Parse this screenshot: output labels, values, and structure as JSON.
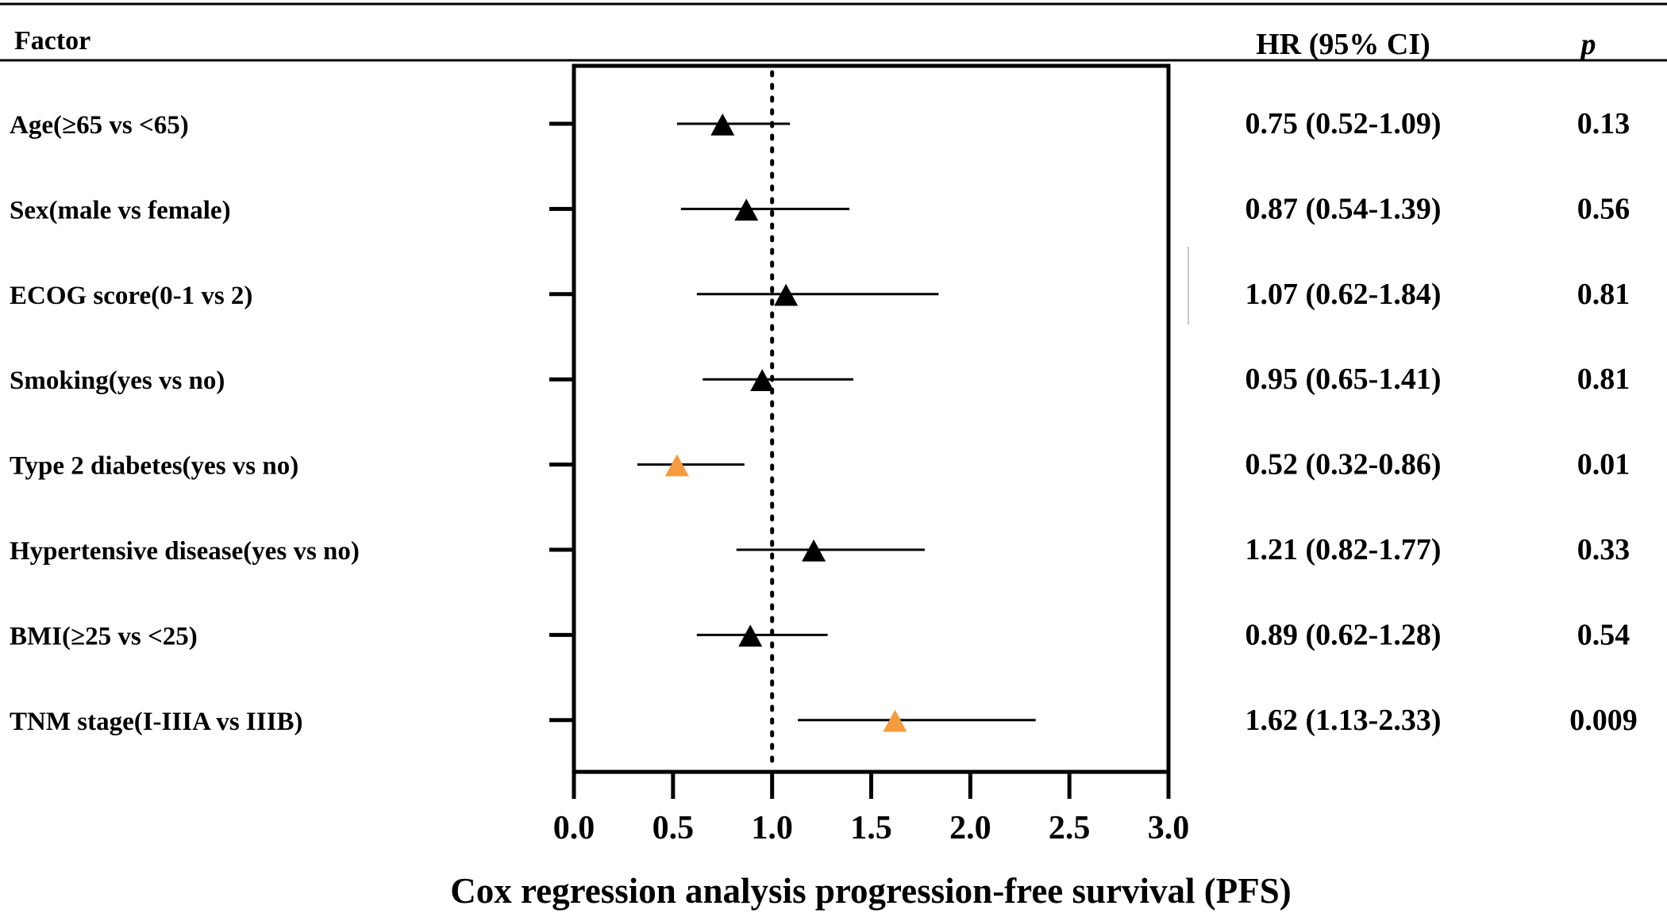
{
  "chart_data": {
    "type": "forest",
    "title": "",
    "xlabel": "Cox regression analysis progression-free survival (PFS)",
    "ylabel": "",
    "xlim": [
      0,
      3
    ],
    "xticks": [
      "0.0",
      "0.5",
      "1.0",
      "1.5",
      "2.0",
      "2.5",
      "3.0"
    ],
    "reference_line": 1.0,
    "headers": {
      "factor": "Factor",
      "hr": "HR (95% CI)",
      "p": "p"
    },
    "colors": {
      "normal": "#000000",
      "significant": "#f59b3e"
    },
    "rows": [
      {
        "factor": "Age(≥65 vs <65)",
        "hr": 0.75,
        "lo": 0.52,
        "hi": 1.09,
        "hr_text": "0.75 (0.52-1.09)",
        "p": "0.13",
        "significant": false
      },
      {
        "factor": "Sex(male vs female)",
        "hr": 0.87,
        "lo": 0.54,
        "hi": 1.39,
        "hr_text": "0.87 (0.54-1.39)",
        "p": "0.56",
        "significant": false
      },
      {
        "factor": "ECOG score(0-1 vs 2)",
        "hr": 1.07,
        "lo": 0.62,
        "hi": 1.84,
        "hr_text": "1.07 (0.62-1.84)",
        "p": "0.81",
        "significant": false
      },
      {
        "factor": "Smoking(yes vs no)",
        "hr": 0.95,
        "lo": 0.65,
        "hi": 1.41,
        "hr_text": "0.95 (0.65-1.41)",
        "p": "0.81",
        "significant": false
      },
      {
        "factor": "Type 2 diabetes(yes vs no)",
        "hr": 0.52,
        "lo": 0.32,
        "hi": 0.86,
        "hr_text": "0.52 (0.32-0.86)",
        "p": "0.01",
        "significant": true
      },
      {
        "factor": "Hypertensive disease(yes vs no)",
        "hr": 1.21,
        "lo": 0.82,
        "hi": 1.77,
        "hr_text": "1.21 (0.82-1.77)",
        "p": "0.33",
        "significant": false
      },
      {
        "factor": "BMI(≥25 vs <25)",
        "hr": 0.89,
        "lo": 0.62,
        "hi": 1.28,
        "hr_text": "0.89 (0.62-1.28)",
        "p": "0.54",
        "significant": false
      },
      {
        "factor": "TNM stage(I-IIIA vs IIIB)",
        "hr": 1.62,
        "lo": 1.13,
        "hi": 2.33,
        "hr_text": "1.62 (1.13-2.33)",
        "p": "0.009",
        "significant": true
      }
    ]
  }
}
